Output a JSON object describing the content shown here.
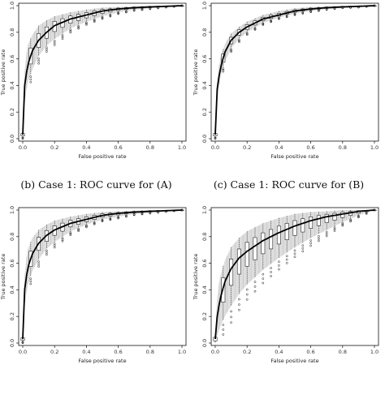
{
  "captions": [
    "(b) Case 1: ROC curve for (A)",
    "(c) Case 1: ROC curve for (B)",
    "",
    ""
  ],
  "chart_data": [
    {
      "type": "line",
      "xlabel": "False positive rate",
      "ylabel": "True positive rate",
      "xlim": [
        0,
        1
      ],
      "ylim": [
        0,
        1
      ],
      "x_ticks": [
        "0.0",
        "0.2",
        "0.4",
        "0.6",
        "0.8",
        "1.0"
      ],
      "y_ticks": [
        "0.0",
        "0.2",
        "0.4",
        "0.6",
        "0.8",
        "1.0"
      ],
      "x": [
        0,
        0.01,
        0.03,
        0.06,
        0.1,
        0.15,
        0.2,
        0.3,
        0.4,
        0.5,
        0.6,
        0.7,
        0.8,
        0.9,
        1.0
      ],
      "series": [
        {
          "style": "mean",
          "values": [
            0.03,
            0.38,
            0.55,
            0.66,
            0.74,
            0.8,
            0.85,
            0.9,
            0.93,
            0.96,
            0.975,
            0.985,
            0.99,
            0.995,
            1.0
          ]
        },
        {
          "style": "band-upper",
          "values": [
            0.05,
            0.5,
            0.7,
            0.78,
            0.85,
            0.89,
            0.92,
            0.95,
            0.97,
            0.985,
            0.99,
            0.995,
            1.0,
            1.0,
            1.0
          ]
        },
        {
          "style": "band-lower",
          "values": [
            0.01,
            0.25,
            0.42,
            0.52,
            0.62,
            0.7,
            0.75,
            0.83,
            0.88,
            0.92,
            0.95,
            0.97,
            0.98,
            0.99,
            1.0
          ]
        }
      ]
    },
    {
      "type": "line",
      "xlabel": "False positive rate",
      "ylabel": "True positive rate",
      "xlim": [
        0,
        1
      ],
      "ylim": [
        0,
        1
      ],
      "x_ticks": [
        "0.0",
        "0.2",
        "0.4",
        "0.6",
        "0.8",
        "1.0"
      ],
      "y_ticks": [
        "0.0",
        "0.2",
        "0.4",
        "0.6",
        "0.8",
        "1.0"
      ],
      "x": [
        0,
        0.01,
        0.03,
        0.06,
        0.1,
        0.15,
        0.2,
        0.3,
        0.4,
        0.5,
        0.6,
        0.7,
        0.8,
        0.9,
        1.0
      ],
      "series": [
        {
          "style": "mean",
          "values": [
            0.03,
            0.35,
            0.52,
            0.65,
            0.74,
            0.8,
            0.84,
            0.9,
            0.93,
            0.96,
            0.975,
            0.985,
            0.99,
            0.995,
            1.0
          ]
        },
        {
          "style": "band-upper",
          "values": [
            0.05,
            0.42,
            0.6,
            0.71,
            0.79,
            0.84,
            0.88,
            0.93,
            0.96,
            0.98,
            0.99,
            0.995,
            1.0,
            1.0,
            1.0
          ]
        },
        {
          "style": "band-lower",
          "values": [
            0.01,
            0.28,
            0.45,
            0.58,
            0.68,
            0.75,
            0.8,
            0.87,
            0.91,
            0.94,
            0.96,
            0.975,
            0.985,
            0.99,
            1.0
          ]
        }
      ]
    },
    {
      "type": "line",
      "xlabel": "False positive rate",
      "ylabel": "True positive rate",
      "xlim": [
        0,
        1
      ],
      "ylim": [
        0,
        1
      ],
      "x_ticks": [
        "0.0",
        "0.2",
        "0.4",
        "0.6",
        "0.8",
        "1.0"
      ],
      "y_ticks": [
        "0.0",
        "0.2",
        "0.4",
        "0.6",
        "0.8",
        "1.0"
      ],
      "x": [
        0,
        0.01,
        0.03,
        0.06,
        0.1,
        0.15,
        0.2,
        0.3,
        0.4,
        0.5,
        0.6,
        0.7,
        0.8,
        0.9,
        1.0
      ],
      "series": [
        {
          "style": "mean",
          "values": [
            0.03,
            0.38,
            0.56,
            0.67,
            0.75,
            0.81,
            0.85,
            0.9,
            0.93,
            0.96,
            0.975,
            0.985,
            0.99,
            0.995,
            1.0
          ]
        },
        {
          "style": "band-upper",
          "values": [
            0.05,
            0.5,
            0.7,
            0.79,
            0.85,
            0.89,
            0.92,
            0.95,
            0.97,
            0.985,
            0.99,
            0.995,
            1.0,
            1.0,
            1.0
          ]
        },
        {
          "style": "band-lower",
          "values": [
            0.01,
            0.26,
            0.43,
            0.54,
            0.63,
            0.71,
            0.76,
            0.84,
            0.89,
            0.93,
            0.95,
            0.97,
            0.98,
            0.99,
            1.0
          ]
        }
      ]
    },
    {
      "type": "line",
      "xlabel": "False positive rate",
      "ylabel": "True positive rate",
      "xlim": [
        0,
        1
      ],
      "ylim": [
        0,
        1
      ],
      "x_ticks": [
        "0.0",
        "0.2",
        "0.4",
        "0.6",
        "0.8",
        "1.0"
      ],
      "y_ticks": [
        "0.0",
        "0.2",
        "0.4",
        "0.6",
        "0.8",
        "1.0"
      ],
      "x": [
        0,
        0.01,
        0.03,
        0.06,
        0.1,
        0.15,
        0.2,
        0.3,
        0.4,
        0.5,
        0.6,
        0.7,
        0.8,
        0.9,
        1.0
      ],
      "series": [
        {
          "style": "mean",
          "values": [
            0.03,
            0.18,
            0.33,
            0.46,
            0.56,
            0.64,
            0.69,
            0.77,
            0.83,
            0.88,
            0.92,
            0.95,
            0.97,
            0.99,
            1.0
          ]
        },
        {
          "style": "band-upper",
          "values": [
            0.06,
            0.32,
            0.5,
            0.62,
            0.72,
            0.79,
            0.84,
            0.9,
            0.94,
            0.97,
            0.985,
            0.99,
            1.0,
            1.0,
            1.0
          ]
        },
        {
          "style": "band-lower",
          "values": [
            0.0,
            0.05,
            0.12,
            0.2,
            0.28,
            0.37,
            0.44,
            0.55,
            0.64,
            0.72,
            0.79,
            0.85,
            0.91,
            0.96,
            1.0
          ]
        }
      ]
    }
  ]
}
